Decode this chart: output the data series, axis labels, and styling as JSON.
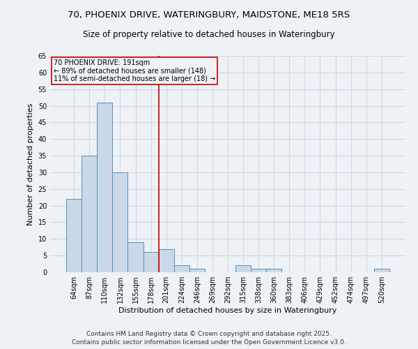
{
  "title_line1": "70, PHOENIX DRIVE, WATERINGBURY, MAIDSTONE, ME18 5RS",
  "title_line2": "Size of property relative to detached houses in Wateringbury",
  "xlabel": "Distribution of detached houses by size in Wateringbury",
  "ylabel": "Number of detached properties",
  "categories": [
    "64sqm",
    "87sqm",
    "110sqm",
    "132sqm",
    "155sqm",
    "178sqm",
    "201sqm",
    "224sqm",
    "246sqm",
    "269sqm",
    "292sqm",
    "315sqm",
    "338sqm",
    "360sqm",
    "383sqm",
    "406sqm",
    "429sqm",
    "452sqm",
    "474sqm",
    "497sqm",
    "520sqm"
  ],
  "values": [
    22,
    35,
    51,
    30,
    9,
    6,
    7,
    2,
    1,
    0,
    0,
    2,
    1,
    1,
    0,
    0,
    0,
    0,
    0,
    0,
    1
  ],
  "bar_color": "#c9d9e8",
  "bar_edge_color": "#5b8db8",
  "grid_color": "#d0d8e4",
  "background_color": "#eef2f7",
  "annotation_text": "70 PHOENIX DRIVE: 191sqm\n← 89% of detached houses are smaller (148)\n11% of semi-detached houses are larger (18) →",
  "vline_x_index": 5.5,
  "vline_color": "#cc0000",
  "annotation_box_edge": "#cc0000",
  "ylim": [
    0,
    65
  ],
  "yticks": [
    0,
    5,
    10,
    15,
    20,
    25,
    30,
    35,
    40,
    45,
    50,
    55,
    60,
    65
  ],
  "footer_line1": "Contains HM Land Registry data © Crown copyright and database right 2025.",
  "footer_line2": "Contains public sector information licensed under the Open Government Licence v3.0.",
  "title_fontsize": 9.5,
  "subtitle_fontsize": 8.5,
  "axis_label_fontsize": 8,
  "tick_fontsize": 7,
  "annotation_fontsize": 7,
  "footer_fontsize": 6.5
}
